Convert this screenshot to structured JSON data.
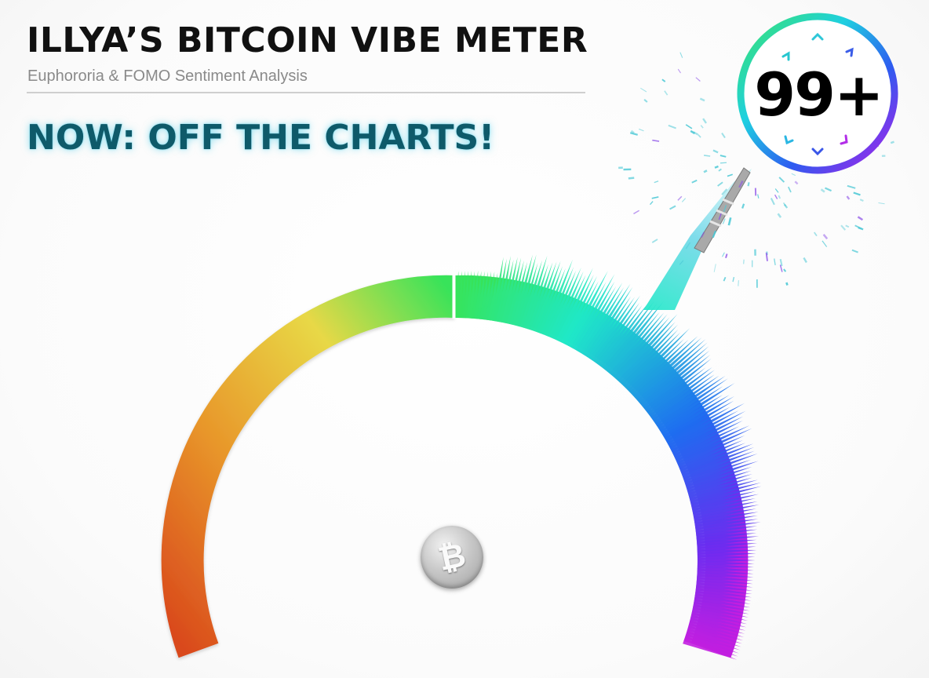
{
  "header": {
    "title": "ILLYA’S BITCOIN VIBE METER",
    "subtitle": "Euphororia & FOMO Sentiment Analysis"
  },
  "status": {
    "text": "NOW: OFF THE CHARTS!"
  },
  "badge": {
    "value": "99+"
  },
  "meter": {
    "reading_percent": 100,
    "overflow": true,
    "gauge_colors": [
      "#d9481c",
      "#e8962a",
      "#e8d846",
      "#37e35a",
      "#1fe8c8",
      "#1e6df0",
      "#6a2cf0",
      "#c21ee0"
    ]
  },
  "coin": {
    "icon": "bitcoin-icon",
    "glyph": "₿"
  }
}
